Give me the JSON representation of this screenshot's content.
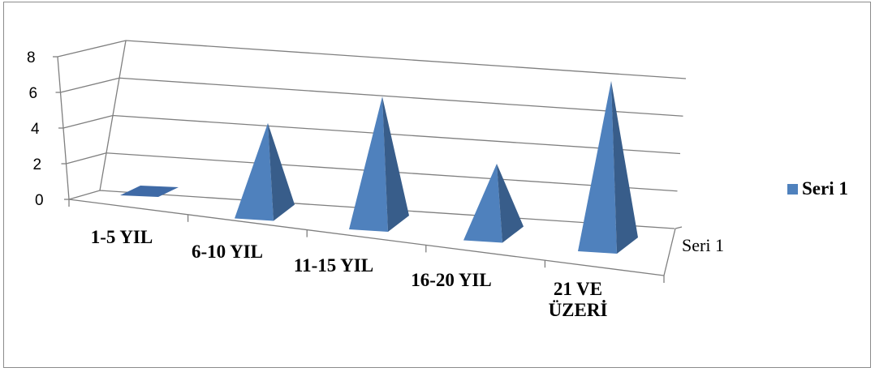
{
  "chart_data": {
    "type": "bar",
    "subtype": "3d-pyramid",
    "title": "",
    "xlabel": "",
    "ylabel": "",
    "categories": [
      "1-5 YIL",
      "6-10 YIL",
      "11-15 YIL",
      "16-20 YIL",
      "21 VE ÜZERİ"
    ],
    "category_lines": [
      [
        "1-5 YIL"
      ],
      [
        "6-10 YIL"
      ],
      [
        "11-15 YIL"
      ],
      [
        "16-20 YIL"
      ],
      [
        "21 VE",
        "ÜZERİ"
      ]
    ],
    "series": [
      {
        "name": "Seri 1",
        "values": [
          0,
          5,
          7,
          4,
          9
        ]
      }
    ],
    "depth_label": "Seri 1",
    "ylim": [
      0,
      8
    ],
    "yticks": [
      "0",
      "2",
      "4",
      "6",
      "8"
    ],
    "grid": true,
    "legend": "right",
    "colors": {
      "front": "#4f81bd",
      "side": "#385d8a",
      "flat": "#3f6aa6",
      "grid": "#7f7f7f"
    }
  }
}
